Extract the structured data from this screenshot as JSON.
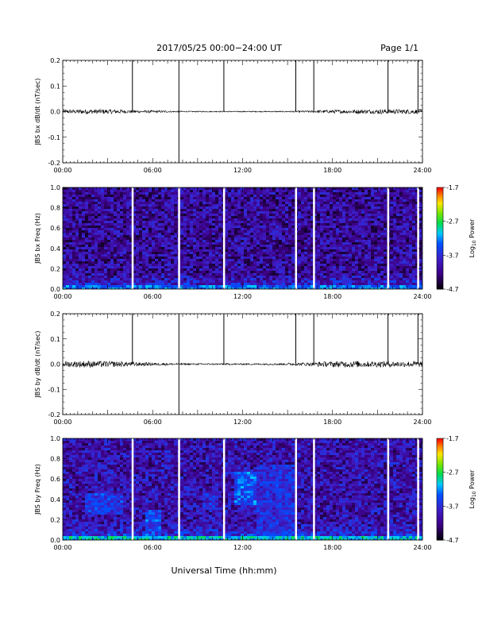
{
  "header": {
    "date_range": "2017/05/25  00:00−24:00 UT",
    "page": "Page 1/1"
  },
  "x_axis": {
    "label": "Universal Time (hh:mm)",
    "ticks": [
      "00:00",
      "06:00",
      "12:00",
      "18:00",
      "24:00"
    ],
    "tick_hours": [
      0,
      6,
      12,
      18,
      24
    ]
  },
  "colorbar": {
    "label_prefix": "Log",
    "label_sub": "10",
    "label_suffix": " Power",
    "ticks": [
      "-1.7",
      "-2.7",
      "-3.7",
      "-4.7"
    ],
    "tick_values": [
      -1.7,
      -2.7,
      -3.7,
      -4.7
    ]
  },
  "chart_data": [
    {
      "type": "line",
      "ylabel": "JBS bx dB/dt (nT/sec)",
      "xlim": [
        0,
        24
      ],
      "ylim": [
        -0.2,
        0.2
      ],
      "yticks": [
        "0.2",
        "0.1",
        "0.0",
        "-0.1",
        "-0.2"
      ],
      "ytick_values": [
        0.2,
        0.1,
        0.0,
        -0.1,
        -0.2
      ],
      "series": [
        {
          "noise_amplitude_by_hour": [
            0.008,
            0.009,
            0.009,
            0.008,
            0.006,
            0.005,
            0.004,
            0.003,
            0.002,
            0.002,
            0.002,
            0.002,
            0.002,
            0.002,
            0.002,
            0.003,
            0.004,
            0.006,
            0.007,
            0.008,
            0.008,
            0.009,
            0.009,
            0.009
          ],
          "spikes": [
            {
              "hour": 4.65,
              "value": 0.2
            },
            {
              "hour": 7.75,
              "value": -0.2
            },
            {
              "hour": 7.75,
              "value": 0.2
            },
            {
              "hour": 10.75,
              "value": 0.2
            },
            {
              "hour": 15.55,
              "value": 0.2
            },
            {
              "hour": 16.75,
              "value": 0.2
            },
            {
              "hour": 21.7,
              "value": 0.2
            },
            {
              "hour": 23.7,
              "value": 0.2
            }
          ]
        }
      ]
    },
    {
      "type": "heatmap",
      "ylabel": "JBS bx Freq (Hz)",
      "xlim": [
        0,
        24
      ],
      "ylim": [
        0.0,
        1.0
      ],
      "yticks": [
        "1.0",
        "0.8",
        "0.6",
        "0.4",
        "0.2",
        "0.0"
      ],
      "ytick_values": [
        1.0,
        0.8,
        0.6,
        0.4,
        0.2,
        0.0
      ],
      "clim": [
        -4.7,
        -1.7
      ],
      "background_log_power": -4.1,
      "low_frequency_band": {
        "freq_max": 0.05,
        "log_power": -3.3
      },
      "data_gaps_hour": [
        4.65,
        7.75,
        10.75,
        15.55,
        16.75,
        21.7,
        23.7
      ]
    },
    {
      "type": "line",
      "ylabel": "JBS by dB/dt (nT/sec)",
      "xlim": [
        0,
        24
      ],
      "ylim": [
        -0.2,
        0.2
      ],
      "yticks": [
        "0.2",
        "0.1",
        "0.0",
        "-0.1",
        "-0.2"
      ],
      "ytick_values": [
        0.2,
        0.1,
        0.0,
        -0.1,
        -0.2
      ],
      "series": [
        {
          "noise_amplitude_by_hour": [
            0.012,
            0.013,
            0.012,
            0.011,
            0.009,
            0.007,
            0.005,
            0.004,
            0.003,
            0.003,
            0.003,
            0.003,
            0.003,
            0.003,
            0.004,
            0.005,
            0.007,
            0.01,
            0.012,
            0.013,
            0.012,
            0.012,
            0.011,
            0.012
          ],
          "spikes": [
            {
              "hour": 4.65,
              "value": 0.2
            },
            {
              "hour": 7.75,
              "value": -0.2
            },
            {
              "hour": 7.75,
              "value": 0.2
            },
            {
              "hour": 10.75,
              "value": 0.2
            },
            {
              "hour": 15.55,
              "value": 0.2
            },
            {
              "hour": 16.75,
              "value": 0.2
            },
            {
              "hour": 21.7,
              "value": 0.2
            },
            {
              "hour": 23.7,
              "value": 0.2
            }
          ]
        }
      ]
    },
    {
      "type": "heatmap",
      "ylabel": "JBS by Freq (Hz)",
      "xlim": [
        0,
        24
      ],
      "ylim": [
        0.0,
        1.0
      ],
      "yticks": [
        "1.0",
        "0.8",
        "0.6",
        "0.4",
        "0.2",
        "0.0"
      ],
      "ytick_values": [
        1.0,
        0.8,
        0.6,
        0.4,
        0.2,
        0.0
      ],
      "clim": [
        -4.7,
        -1.7
      ],
      "background_log_power": -4.0,
      "low_frequency_band": {
        "freq_max": 0.05,
        "log_power": -3.0
      },
      "enhancements": [
        {
          "hour_start": 1.5,
          "hour_end": 4.0,
          "freq_low": 0.25,
          "freq_high": 0.45,
          "log_power": -3.6
        },
        {
          "hour_start": 5.5,
          "hour_end": 6.6,
          "freq_low": 0.02,
          "freq_high": 0.3,
          "log_power": -3.5
        },
        {
          "hour_start": 9.3,
          "hour_end": 10.3,
          "freq_low": 0.3,
          "freq_high": 0.45,
          "log_power": -3.7
        },
        {
          "hour_start": 11.5,
          "hour_end": 13.0,
          "freq_low": 0.35,
          "freq_high": 0.68,
          "log_power": -3.4
        },
        {
          "hour_start": 13.0,
          "hour_end": 15.5,
          "freq_low": 0.05,
          "freq_high": 0.75,
          "log_power": -3.7
        }
      ],
      "data_gaps_hour": [
        4.65,
        7.75,
        10.75,
        15.55,
        16.75,
        21.7,
        23.7
      ]
    }
  ]
}
